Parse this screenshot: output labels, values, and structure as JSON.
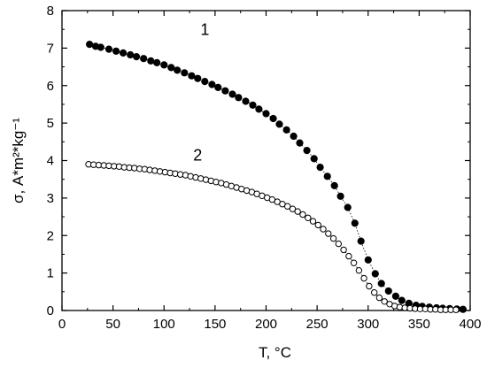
{
  "chart_data": {
    "type": "scatter",
    "xlabel": "T, °C",
    "ylabel": "σ, A*m²*kg⁻¹",
    "xlim": [
      0,
      400
    ],
    "ylim": [
      0,
      8
    ],
    "xticks": [
      0,
      50,
      100,
      150,
      200,
      250,
      300,
      350,
      400
    ],
    "yticks": [
      0,
      1,
      2,
      3,
      4,
      5,
      6,
      7,
      8
    ],
    "grid": false,
    "legend": "none",
    "series": [
      {
        "label": "1",
        "marker": "filled-circle",
        "line": "dotted",
        "color": "#000000",
        "x": [
          27,
          33,
          38,
          46,
          53,
          60,
          67,
          73,
          80,
          87,
          93,
          100,
          107,
          113,
          120,
          127,
          133,
          140,
          147,
          153,
          160,
          167,
          173,
          180,
          187,
          193,
          200,
          207,
          213,
          220,
          227,
          233,
          240,
          247,
          253,
          260,
          267,
          273,
          280,
          287,
          293,
          300,
          307,
          313,
          320,
          327,
          333,
          340,
          347,
          353,
          360,
          367,
          373,
          380,
          387,
          393
        ],
        "y": [
          7.1,
          7.05,
          7.02,
          6.97,
          6.92,
          6.87,
          6.82,
          6.77,
          6.72,
          6.66,
          6.61,
          6.55,
          6.48,
          6.41,
          6.34,
          6.26,
          6.19,
          6.11,
          6.03,
          5.95,
          5.86,
          5.77,
          5.68,
          5.58,
          5.48,
          5.37,
          5.25,
          5.12,
          4.97,
          4.82,
          4.65,
          4.47,
          4.27,
          4.05,
          3.82,
          3.58,
          3.33,
          3.05,
          2.75,
          2.33,
          1.85,
          1.35,
          0.98,
          0.72,
          0.52,
          0.38,
          0.27,
          0.19,
          0.14,
          0.11,
          0.09,
          0.07,
          0.06,
          0.05,
          0.04,
          0.03
        ]
      },
      {
        "label": "2",
        "marker": "open-circle",
        "line": "dotted",
        "color": "#000000",
        "x": [
          26,
          31,
          36,
          41,
          46,
          51,
          56,
          61,
          66,
          71,
          76,
          81,
          86,
          91,
          96,
          101,
          106,
          111,
          116,
          121,
          126,
          131,
          136,
          141,
          146,
          151,
          156,
          161,
          166,
          171,
          176,
          181,
          186,
          191,
          196,
          201,
          206,
          211,
          216,
          221,
          226,
          231,
          236,
          241,
          246,
          251,
          256,
          261,
          266,
          271,
          276,
          281,
          286,
          291,
          296,
          301,
          306,
          311,
          316,
          321,
          326,
          331,
          336,
          341,
          346,
          351,
          356,
          361,
          366,
          371,
          376,
          381,
          386
        ],
        "y": [
          3.9,
          3.89,
          3.88,
          3.87,
          3.86,
          3.85,
          3.84,
          3.82,
          3.81,
          3.8,
          3.78,
          3.77,
          3.75,
          3.73,
          3.71,
          3.69,
          3.67,
          3.65,
          3.63,
          3.61,
          3.58,
          3.55,
          3.52,
          3.49,
          3.46,
          3.43,
          3.4,
          3.36,
          3.32,
          3.28,
          3.24,
          3.2,
          3.16,
          3.11,
          3.06,
          3.01,
          2.96,
          2.9,
          2.84,
          2.78,
          2.71,
          2.64,
          2.56,
          2.47,
          2.38,
          2.28,
          2.17,
          2.05,
          1.92,
          1.78,
          1.62,
          1.45,
          1.27,
          1.07,
          0.86,
          0.65,
          0.48,
          0.34,
          0.24,
          0.17,
          0.12,
          0.09,
          0.07,
          0.06,
          0.05,
          0.04,
          0.04,
          0.03,
          0.03,
          0.02,
          0.02,
          0.02,
          0.02
        ]
      }
    ]
  }
}
